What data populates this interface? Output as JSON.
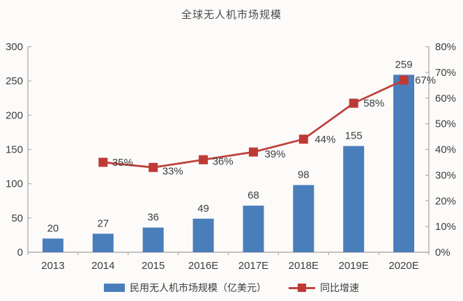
{
  "colors": {
    "bar": "#4a7ebb",
    "line": "#c0413c",
    "marker": "#bf3a35",
    "text": "#3d3d3d",
    "axis": "#b3b0ad",
    "title_text": "#4a4a4a",
    "background": "#fcfbfa"
  },
  "chart_data": {
    "type": "bar+line combo",
    "title": "全球无人机市场规模",
    "categories": [
      "2013",
      "2014",
      "2015",
      "2016E",
      "2017E",
      "2018E",
      "2019E",
      "2020E"
    ],
    "series": [
      {
        "name": "民用无人机市场规模（亿美元）",
        "type": "bar",
        "axis": "left",
        "values": [
          20,
          27,
          36,
          49,
          68,
          98,
          155,
          259
        ],
        "value_labels": [
          "20",
          "27",
          "36",
          "49",
          "68",
          "98",
          "155",
          "259"
        ]
      },
      {
        "name": "同比增速",
        "type": "line",
        "axis": "right",
        "values": [
          null,
          35,
          33,
          36,
          39,
          44,
          58,
          67
        ],
        "point_labels": [
          "",
          "35%",
          "33%",
          "36%",
          "39%",
          "44%",
          "58%",
          "67%"
        ]
      }
    ],
    "left_axis": {
      "min": 0,
      "max": 300,
      "step": 50,
      "ticks": [
        "0",
        "50",
        "100",
        "150",
        "200",
        "250",
        "300"
      ]
    },
    "right_axis": {
      "min": 0,
      "max": 80,
      "step": 10,
      "ticks": [
        "0%",
        "10%",
        "20%",
        "30%",
        "40%",
        "50%",
        "60%",
        "70%",
        "80%"
      ]
    },
    "grid": false,
    "legend_position": "bottom",
    "legend": [
      {
        "label": "民用无人机市场规模（亿美元）",
        "swatch": "bar"
      },
      {
        "label": "同比增速",
        "swatch": "line-marker"
      }
    ]
  }
}
